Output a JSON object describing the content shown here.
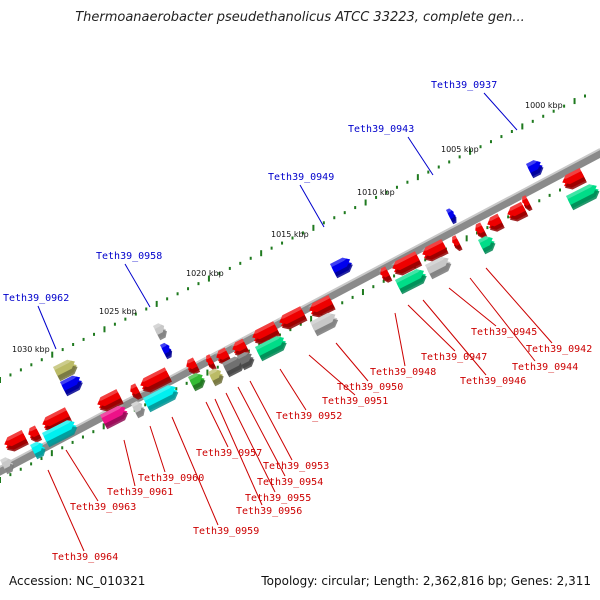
{
  "title": "Thermoanaerobacter pseudethanolicus ATCC 33223, complete gen...",
  "accession": "Accession: NC_010321",
  "summary": "Topology: circular; Length: 2,362,816 bp; Genes: 2,311",
  "colors": {
    "backbone": "#8a8a8a",
    "tick_dots": "#1f7a1f",
    "plus_label": "#0000cc",
    "minus_label": "#cc0000",
    "red": "#ee0000",
    "gray": "#c8c8c8",
    "darkgray": "#707070",
    "cyan": "#00f0f0",
    "green": "#00dd88",
    "olive": "#bbbb66",
    "blue": "#0000ee",
    "magenta": "#ee1188",
    "lime": "#33bb33"
  },
  "kbp_labels": [
    {
      "text": "1000 kbp"
    },
    {
      "text": "1005 kbp"
    },
    {
      "text": "1010 kbp"
    },
    {
      "text": "1015 kbp"
    },
    {
      "text": "1020 kbp"
    },
    {
      "text": "1025 kbp"
    },
    {
      "text": "1030 kbp"
    }
  ],
  "plus_genes": [
    {
      "label": "Teth39_0937"
    },
    {
      "label": "Teth39_0943"
    },
    {
      "label": "Teth39_0949"
    },
    {
      "label": "Teth39_0958"
    },
    {
      "label": "Teth39_0962"
    }
  ],
  "minus_genes": [
    {
      "label": "Teth39_0942"
    },
    {
      "label": "Teth39_0944"
    },
    {
      "label": "Teth39_0945"
    },
    {
      "label": "Teth39_0946"
    },
    {
      "label": "Teth39_0947"
    },
    {
      "label": "Teth39_0948"
    },
    {
      "label": "Teth39_0950"
    },
    {
      "label": "Teth39_0951"
    },
    {
      "label": "Teth39_0952"
    },
    {
      "label": "Teth39_0953"
    },
    {
      "label": "Teth39_0954"
    },
    {
      "label": "Teth39_0955"
    },
    {
      "label": "Teth39_0956"
    },
    {
      "label": "Teth39_0957"
    },
    {
      "label": "Teth39_0959"
    },
    {
      "label": "Teth39_0960"
    },
    {
      "label": "Teth39_0961"
    },
    {
      "label": "Teth39_0963"
    },
    {
      "label": "Teth39_0964"
    }
  ]
}
